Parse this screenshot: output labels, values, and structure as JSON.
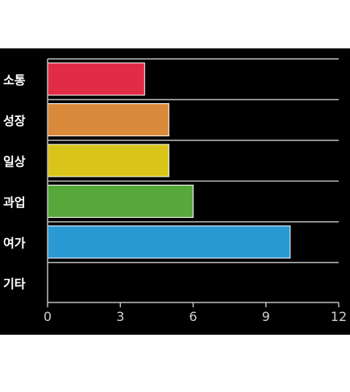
{
  "chart_data": {
    "type": "bar",
    "orientation": "horizontal",
    "categories": [
      "소통",
      "성장",
      "일상",
      "과업",
      "여가",
      "기타"
    ],
    "values": [
      4,
      5,
      5,
      6,
      10,
      0
    ],
    "colors": [
      "#e22b45",
      "#d98a3a",
      "#d9c51a",
      "#57a83b",
      "#2a9ad5",
      "#000000"
    ],
    "xlim": [
      0,
      12
    ],
    "xticks": [
      0,
      3,
      6,
      9,
      12
    ],
    "title": "",
    "xlabel": "",
    "ylabel": "",
    "grid": "horizontal separators between categories",
    "background": "#000000"
  }
}
